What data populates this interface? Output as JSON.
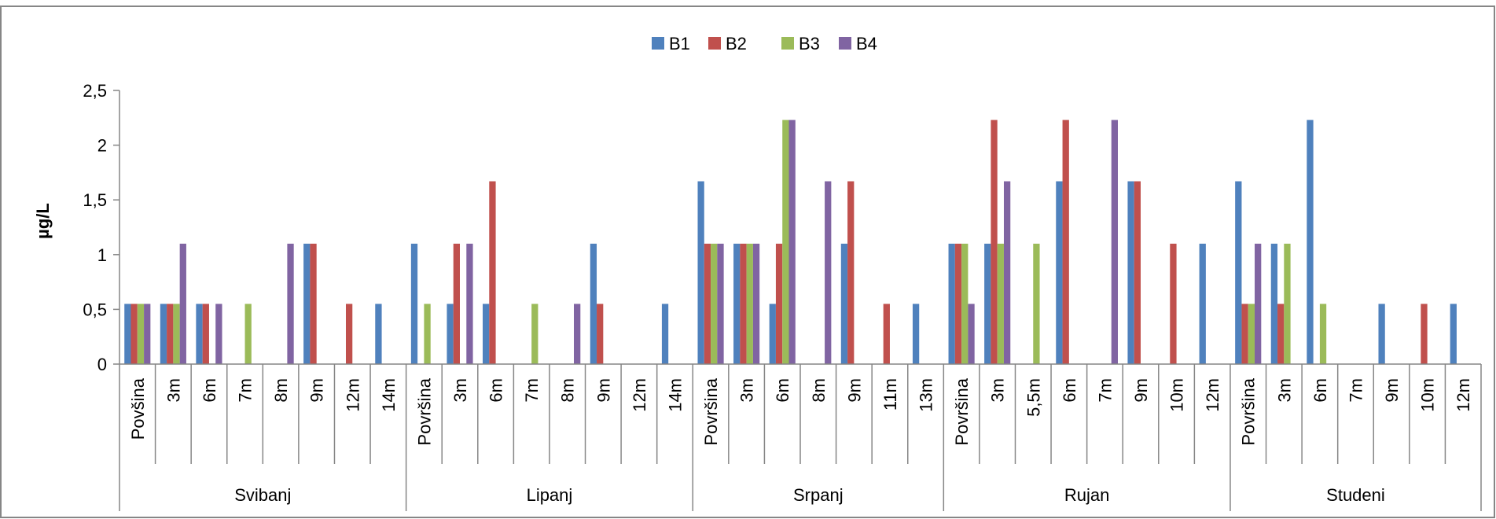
{
  "chart_data": {
    "type": "bar",
    "ylabel": "µg/L",
    "xlabel": "",
    "ylim": [
      0,
      2.5
    ],
    "yticks": [
      0,
      0.5,
      1,
      1.5,
      2,
      2.5
    ],
    "ytick_labels": [
      "0",
      "0,5",
      "1",
      "1,5",
      "2",
      "2,5"
    ],
    "legend_position": "top",
    "groups": [
      {
        "name": "Svibanj",
        "categories": [
          "Povšina",
          "3m",
          "6m",
          "7m",
          "8m",
          "9m",
          "12m",
          "14m"
        ]
      },
      {
        "name": "Lipanj",
        "categories": [
          "Površina",
          "3m",
          "6m",
          "7m",
          "8m",
          "9m",
          "12m",
          "14m"
        ]
      },
      {
        "name": "Srpanj",
        "categories": [
          "Površina",
          "3m",
          "6m",
          "8m",
          "9m",
          "11m",
          "13m"
        ]
      },
      {
        "name": "Rujan",
        "categories": [
          "Površina",
          "3m",
          "5,5m",
          "6m",
          "7m",
          "9m",
          "10m",
          "12m"
        ]
      },
      {
        "name": "Studeni",
        "categories": [
          "Površina",
          "3m",
          "6m",
          "7m",
          "9m",
          "10m",
          "12m"
        ]
      }
    ],
    "series": [
      {
        "name": "B1",
        "color": "#4f81bd",
        "values": [
          0.55,
          0.55,
          0.55,
          0,
          0,
          1.1,
          0,
          0.55,
          1.1,
          0.55,
          0.55,
          0,
          0,
          1.1,
          0,
          0.55,
          1.67,
          1.1,
          0.55,
          0,
          1.1,
          0,
          0.55,
          1.1,
          1.1,
          0,
          1.67,
          0,
          1.67,
          0,
          1.1,
          1.67,
          1.1,
          2.23,
          0,
          0.55,
          0,
          0.55
        ]
      },
      {
        "name": "B2",
        "color": "#c0504d",
        "values": [
          0.55,
          0.55,
          0.55,
          0,
          0,
          1.1,
          0.55,
          0,
          0,
          1.1,
          1.67,
          0,
          0,
          0.55,
          0,
          0,
          1.1,
          1.1,
          1.1,
          0,
          1.67,
          0.55,
          0,
          1.1,
          2.23,
          0,
          2.23,
          0,
          1.67,
          1.1,
          0,
          0.55,
          0.55,
          0,
          0,
          0,
          0.55,
          0
        ]
      },
      {
        "name": "B3",
        "color": "#9bbb59",
        "values": [
          0.55,
          0.55,
          0,
          0.55,
          0,
          0,
          0,
          0,
          0.55,
          0,
          0,
          0.55,
          0,
          0,
          0,
          0,
          1.1,
          1.1,
          2.23,
          0,
          0,
          0,
          0,
          1.1,
          1.1,
          1.1,
          0,
          0,
          0,
          0,
          0,
          0.55,
          1.1,
          0.55,
          0,
          0,
          0,
          0
        ]
      },
      {
        "name": "B4",
        "color": "#8064a2",
        "values": [
          0.55,
          1.1,
          0.55,
          0,
          1.1,
          0,
          0,
          0,
          0,
          1.1,
          0,
          0,
          0.55,
          0,
          0,
          0,
          1.1,
          1.1,
          2.23,
          1.67,
          0,
          0,
          0,
          0.55,
          1.67,
          0,
          0,
          2.23,
          0,
          0,
          0,
          1.1,
          0,
          0,
          0,
          0,
          0,
          0
        ]
      }
    ]
  }
}
